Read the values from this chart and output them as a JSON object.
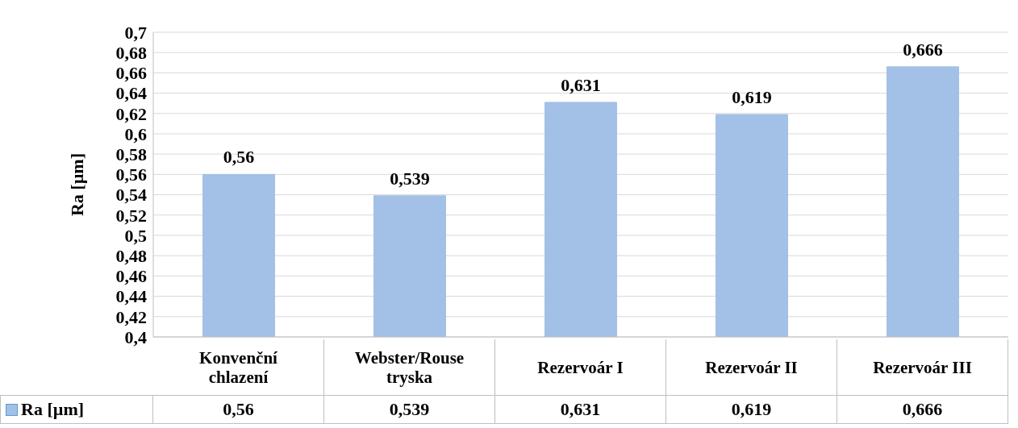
{
  "chart_data": {
    "type": "bar",
    "ylabel": "Ra [µm]",
    "categories": [
      "Konvenční chlazení",
      "Webster/Rouse tryska",
      "Rezervoár I",
      "Rezervoár II",
      "Rezervoár III"
    ],
    "series": [
      {
        "name": "Ra [µm]",
        "color": "#a3c0e6",
        "values": [
          0.56,
          0.539,
          0.631,
          0.619,
          0.666
        ],
        "value_labels": [
          "0,56",
          "0,539",
          "0,631",
          "0,619",
          "0,666"
        ]
      }
    ],
    "ylim": [
      0.4,
      0.7
    ],
    "yticks": [
      {
        "value": 0.4,
        "label": "0,4"
      },
      {
        "value": 0.42,
        "label": "0,42"
      },
      {
        "value": 0.44,
        "label": "0,44"
      },
      {
        "value": 0.46,
        "label": "0,46"
      },
      {
        "value": 0.48,
        "label": "0,48"
      },
      {
        "value": 0.5,
        "label": "0,5"
      },
      {
        "value": 0.52,
        "label": "0,52"
      },
      {
        "value": 0.54,
        "label": "0,54"
      },
      {
        "value": 0.56,
        "label": "0,56"
      },
      {
        "value": 0.58,
        "label": "0,58"
      },
      {
        "value": 0.6,
        "label": "0,6"
      },
      {
        "value": 0.62,
        "label": "0,62"
      },
      {
        "value": 0.64,
        "label": "0,64"
      },
      {
        "value": 0.66,
        "label": "0,66"
      },
      {
        "value": 0.68,
        "label": "0,68"
      },
      {
        "value": 0.7,
        "label": "0,7"
      }
    ],
    "grid": "y",
    "legend": "bottom"
  }
}
